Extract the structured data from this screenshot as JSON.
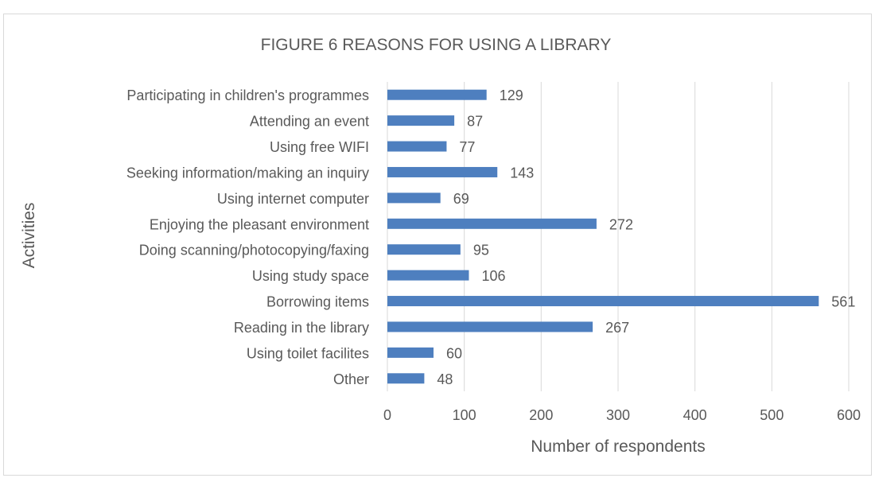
{
  "chart_data": {
    "type": "bar",
    "orientation": "horizontal",
    "title": "FIGURE 6 REASONS FOR USING A LIBRARY",
    "xlabel": "Number of respondents",
    "ylabel": "Activities",
    "categories": [
      "Participating in children's programmes",
      "Attending an event",
      "Using free WIFI",
      "Seeking information/making an inquiry",
      "Using internet computer",
      "Enjoying the pleasant environment",
      "Doing scanning/photocopying/faxing",
      "Using study space",
      "Borrowing items",
      "Reading in the library",
      "Using toilet facilites",
      "Other"
    ],
    "values": [
      129,
      87,
      77,
      143,
      69,
      272,
      95,
      106,
      561,
      267,
      60,
      48
    ],
    "xlim": [
      0,
      600
    ],
    "xticks": [
      0,
      100,
      200,
      300,
      400,
      500,
      600
    ],
    "grid": true,
    "data_labels": true,
    "legend": "none",
    "colors": {
      "bar": "#4e7fbf",
      "grid": "#d9d9d9",
      "text": "#595959"
    }
  }
}
